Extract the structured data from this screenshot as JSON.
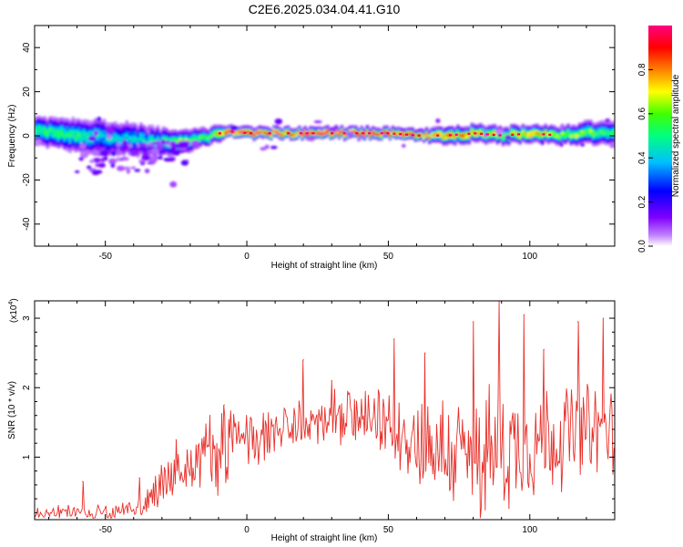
{
  "title": "C2E6.2025.034.04.41.G10",
  "chart_data": [
    {
      "type": "heatmap",
      "xlabel": "Height of straight line (km)",
      "ylabel": "Frequency (Hz)",
      "xlim": [
        -75,
        130
      ],
      "ylim": [
        -50,
        50
      ],
      "xticks": [
        -50,
        0,
        50,
        100
      ],
      "yticks": [
        -40,
        -20,
        0,
        20,
        40
      ],
      "colorbar": {
        "label": "Normalized spectral amplitude",
        "range": [
          0,
          1
        ],
        "ticks": [
          "0.0",
          "0.2",
          "0.4",
          "0.6",
          "0.8"
        ],
        "colors": [
          "#ffffff",
          "#c080ff",
          "#8000ff",
          "#0000ff",
          "#00c0ff",
          "#00ff80",
          "#40ff00",
          "#ffff00",
          "#ff8000",
          "#ff0000",
          "#ff0080"
        ]
      },
      "ridge": {
        "x": [
          -75,
          -60,
          -50,
          -40,
          -30,
          -25,
          -20,
          -15,
          -10,
          -8,
          0,
          10,
          20,
          30,
          40,
          50,
          60,
          70,
          80,
          90,
          100,
          110,
          120,
          130
        ],
        "frequency": [
          2,
          0,
          -1,
          -2,
          -3,
          -3,
          -2,
          -1,
          1,
          2,
          1,
          1,
          1,
          1,
          1,
          1,
          0,
          0,
          1,
          0,
          1,
          0,
          1,
          1
        ],
        "peak_amplitude": [
          0.55,
          0.55,
          0.45,
          0.45,
          0.55,
          0.75,
          0.6,
          0.6,
          0.8,
          0.95,
          1.0,
          1.0,
          1.0,
          1.0,
          1.0,
          0.95,
          0.9,
          0.85,
          0.8,
          0.75,
          0.85,
          0.7,
          0.65,
          0.55
        ],
        "half_width_hz": [
          5,
          6,
          6,
          6,
          5,
          4,
          4,
          3,
          3,
          2,
          2,
          2,
          2,
          2,
          2,
          2,
          2,
          3,
          3,
          3,
          3,
          3,
          4,
          4
        ]
      }
    },
    {
      "type": "line",
      "xlabel": "Height of straight line (km)",
      "ylabel": "SNR (10 * v/v)",
      "yscale_label": "(x10",
      "yscale_exponent": "4",
      "y_multiplier": 10000,
      "xlim": [
        -75,
        130
      ],
      "ylim": [
        0.1,
        3.25
      ],
      "xticks": [
        -50,
        0,
        50,
        100
      ],
      "yticks": [
        1,
        2,
        3
      ],
      "line_color": "#e8302a",
      "series": [
        {
          "x": [
            -75,
            -65,
            -55,
            -45,
            -40,
            -35,
            -30,
            -25,
            -20,
            -15,
            -10,
            -5,
            0,
            5,
            10,
            15,
            20,
            25,
            30,
            35,
            40,
            45,
            50,
            55,
            60,
            65,
            70,
            75,
            80,
            85,
            90,
            95,
            100,
            105,
            110,
            115,
            120,
            125,
            130
          ],
          "envelope": [
            0.2,
            0.2,
            0.2,
            0.2,
            0.25,
            0.4,
            0.6,
            0.75,
            0.85,
            1.0,
            1.05,
            1.2,
            1.25,
            1.3,
            1.35,
            1.4,
            1.45,
            1.5,
            1.5,
            1.55,
            1.55,
            1.5,
            1.45,
            1.35,
            1.25,
            1.15,
            1.1,
            1.0,
            1.0,
            1.05,
            1.1,
            1.15,
            1.2,
            1.25,
            1.3,
            1.35,
            1.35,
            1.35,
            1.35
          ],
          "spread": [
            0.1,
            0.1,
            0.1,
            0.12,
            0.15,
            0.25,
            0.35,
            0.4,
            0.45,
            0.5,
            0.55,
            0.5,
            0.45,
            0.4,
            0.35,
            0.35,
            0.35,
            0.35,
            0.4,
            0.4,
            0.4,
            0.4,
            0.45,
            0.55,
            0.65,
            0.75,
            0.8,
            0.85,
            0.9,
            0.9,
            0.9,
            0.85,
            0.8,
            0.8,
            0.75,
            0.7,
            0.7,
            0.7,
            0.6
          ],
          "peaks": [
            {
              "x": -58,
              "y": 0.65
            },
            {
              "x": -38,
              "y": 0.7
            },
            {
              "x": -25,
              "y": 1.25
            },
            {
              "x": -13,
              "y": 1.6
            },
            {
              "x": -8,
              "y": 1.75
            },
            {
              "x": 20,
              "y": 2.4
            },
            {
              "x": 30,
              "y": 2.1
            },
            {
              "x": 52,
              "y": 2.7
            },
            {
              "x": 63,
              "y": 2.5
            },
            {
              "x": 80,
              "y": 2.95
            },
            {
              "x": 89,
              "y": 3.25
            },
            {
              "x": 98,
              "y": 3.05
            },
            {
              "x": 105,
              "y": 2.55
            },
            {
              "x": 117,
              "y": 2.95
            },
            {
              "x": 126,
              "y": 3.0
            }
          ]
        }
      ]
    }
  ]
}
